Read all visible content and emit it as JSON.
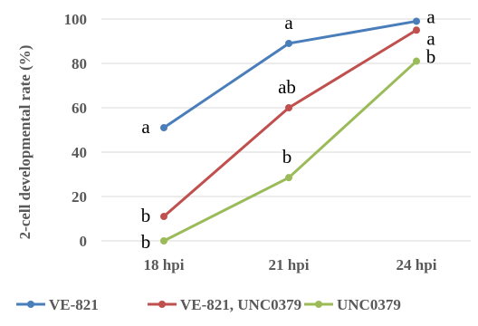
{
  "chart_data": {
    "type": "line",
    "title": "",
    "xlabel": "",
    "ylabel": "2-cell developmental rate (%)",
    "categories": [
      "18 hpi",
      "21 hpi",
      "24 hpi"
    ],
    "ylim": [
      0,
      100
    ],
    "yticks": [
      0,
      20,
      40,
      60,
      80,
      100
    ],
    "grid": true,
    "legend_position": "bottom",
    "series": [
      {
        "name": "VE-821",
        "color": "#4a7ebb",
        "values": [
          51,
          89,
          99
        ],
        "labels": [
          "a",
          "a",
          "a"
        ]
      },
      {
        "name": "VE-821, UNC0379",
        "color": "#c0504d",
        "values": [
          11,
          60,
          95
        ],
        "labels": [
          "b",
          "ab",
          "a"
        ]
      },
      {
        "name": "UNC0379",
        "color": "#9bbb59",
        "values": [
          0,
          28.5,
          81
        ],
        "labels": [
          "b",
          "b",
          "b"
        ]
      }
    ]
  }
}
